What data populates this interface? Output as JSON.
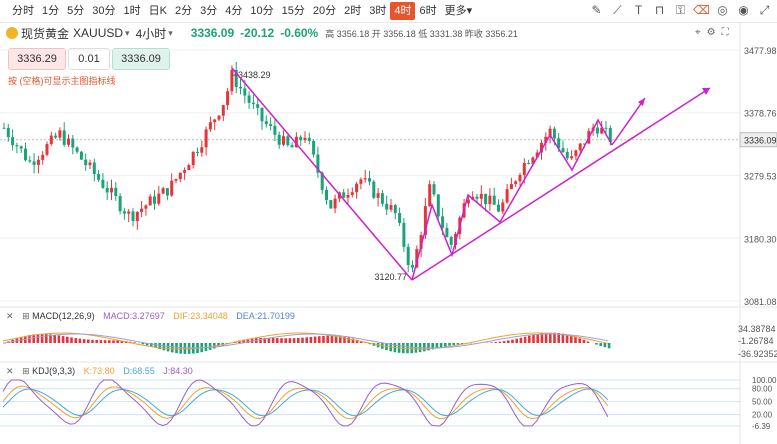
{
  "toolbar": {
    "timeframes": [
      "分时",
      "1分",
      "5分",
      "30分",
      "1时",
      "日K",
      "2分",
      "3分",
      "4分",
      "10分",
      "15分",
      "20分",
      "2时",
      "3时",
      "4时",
      "6时"
    ],
    "active_index": 14,
    "more_label": "更多",
    "caret": "▾",
    "right_icons": [
      "pen-icon",
      "ruler-icon",
      "text-icon",
      "magnet-icon",
      "lock-icon",
      "delete-icon",
      "visibility-icon",
      "eye-icon",
      "expand-icon"
    ]
  },
  "header": {
    "symbol_name": "现货黄金",
    "symbol_code": "XAUUSD",
    "caret": "▾",
    "period": "4小时",
    "price": "3336.09",
    "change": "-20.12",
    "change_pct": "-0.60%",
    "ohlc": "高 3356.18 开 3356.18 低 3331.38 昨收 3356.21",
    "sell_price": "3336.29",
    "qty": "0.01",
    "buy_price": "3336.09",
    "hint": "按 (空格)可显示主图指标线"
  },
  "price_axis": [
    "3477.98",
    "3378.76",
    "3279.53",
    "3180.30",
    "3081.08"
  ],
  "current_price": "3336.09",
  "annotations": {
    "high": "3438.29",
    "low": "3120.77"
  },
  "macd": {
    "collapse_glyph": "✕",
    "expand_glyph": "⊞",
    "label": "MACD(12,26,9)",
    "macd": "MACD:3.27697",
    "dif": "DIF:23.34048",
    "dea": "DEA:21.70199",
    "axis": [
      "34.38784",
      "-1.26784",
      "-36.92352"
    ]
  },
  "kdj": {
    "collapse_glyph": "✕",
    "expand_glyph": "⊞",
    "label": "KDJ(9,3,3)",
    "k": "K:73.80",
    "d": "D:68.55",
    "j": "J:84.30",
    "axis": [
      "100.00",
      "80.00",
      "50.00",
      "20.00",
      "-6.39"
    ]
  },
  "colors": {
    "up": "#e5353a",
    "down": "#1aa37a",
    "trend": "#cc22cc",
    "accent": "#e8552b",
    "dif": "#f0a030",
    "dea": "#9aa0d8",
    "k": "#f0a030",
    "d": "#4aa8d8",
    "j": "#9a5ec8"
  }
}
